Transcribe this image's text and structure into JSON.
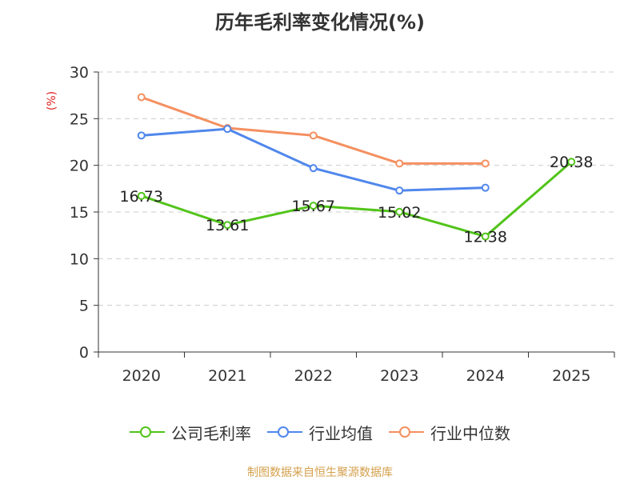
{
  "title": "历年毛利率变化情况(%)",
  "source": "制图数据来自恒生聚源数据库",
  "chart_data": {
    "type": "line",
    "title": "历年毛利率变化情况(%)",
    "ylabel": "(%)",
    "xlabel": "",
    "categories": [
      "2020",
      "2021",
      "2022",
      "2023",
      "2024",
      "2025"
    ],
    "ylim": [
      0,
      30
    ],
    "yticks": [
      0,
      5,
      10,
      15,
      20,
      25,
      30
    ],
    "grid": true,
    "legend": "bottom-center",
    "series": [
      {
        "name": "公司毛利率",
        "color": "#52c41a",
        "values": [
          16.73,
          13.61,
          15.67,
          15.02,
          12.38,
          20.38
        ],
        "labels": [
          "16.73",
          "13.61",
          "15.67",
          "15.02",
          "12.38",
          "20.38"
        ]
      },
      {
        "name": "行业均值",
        "color": "#5087ec",
        "values": [
          23.2,
          23.9,
          19.7,
          17.3,
          17.6,
          null
        ]
      },
      {
        "name": "行业中位数",
        "color": "#f49060",
        "values": [
          27.3,
          24.0,
          23.2,
          20.2,
          20.2,
          null
        ]
      }
    ]
  }
}
